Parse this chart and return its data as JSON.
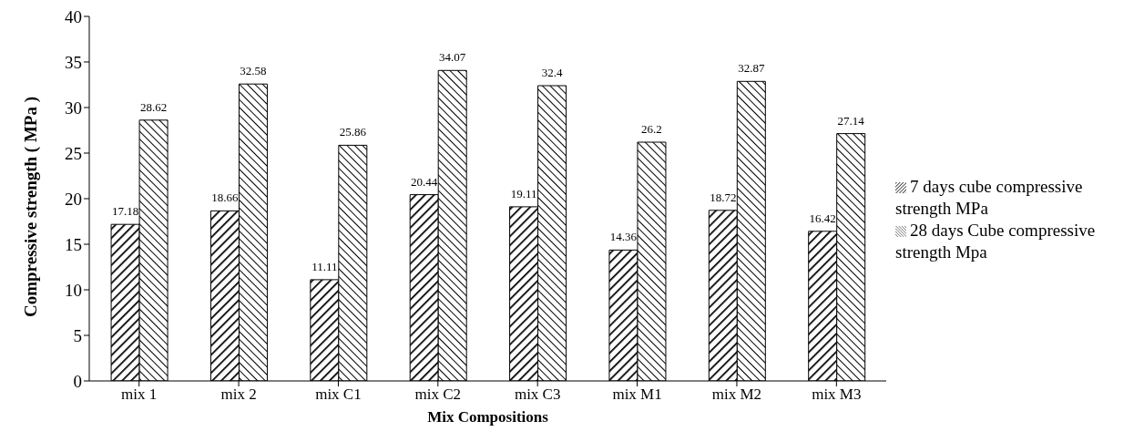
{
  "chart_data": {
    "type": "bar",
    "xlabel": "Mix Compositions",
    "ylabel": "Compressive strength ( MPa )",
    "categories": [
      "mix 1",
      "mix 2",
      "mix C1",
      "mix C2",
      "mix C3",
      "mix M1",
      "mix M2",
      "mix M3"
    ],
    "series": [
      {
        "name": "7 days cube compressive strength MPa",
        "color": "#000000",
        "values": [
          17.18,
          18.66,
          11.11,
          20.44,
          19.11,
          14.36,
          18.72,
          16.42
        ]
      },
      {
        "name": "28 days Cube compressive strength Mpa",
        "color": "#000000",
        "values": [
          28.62,
          32.58,
          25.86,
          34.07,
          32.4,
          26.2,
          32.87,
          27.14
        ]
      }
    ],
    "ylim": [
      0,
      40
    ],
    "yticks": [
      0,
      5,
      10,
      15,
      20,
      25,
      30,
      35,
      40
    ],
    "grid": false,
    "legend": "right",
    "data_labels": true
  }
}
